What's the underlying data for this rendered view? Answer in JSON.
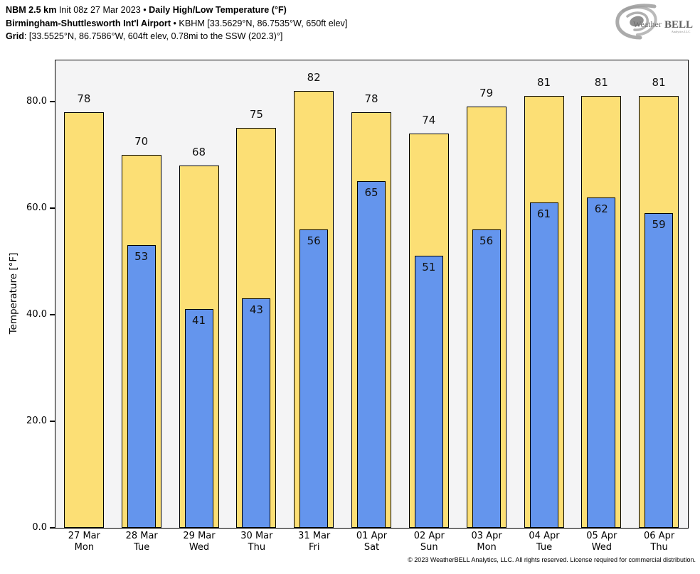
{
  "header": {
    "line1_model": "NBM 2.5 km",
    "line1_init": " Init 08z 27 Mar 2023 • ",
    "line1_product": "Daily High/Low Temperature (°F)",
    "line2_station": "Birmingham-Shuttlesworth Int'l Airport",
    "line2_info": " • KBHM [33.5629°N, 86.7535°W, 650ft elev]",
    "line3_label": "Grid",
    "line3_info": ": [33.5525°N, 86.7586°W, 604ft elev, 0.78mi to the SSW (202.3)°]"
  },
  "logo": {
    "name_part1": "Weather",
    "name_part2": "BELL",
    "subtitle": "Analytics LLC"
  },
  "chart_data": {
    "type": "bar",
    "title": "Daily High/Low Temperature (°F)",
    "xlabel": "",
    "ylabel": "Temperature [°F]",
    "ylim": [
      0,
      87.7
    ],
    "yticks": [
      0,
      20,
      40,
      60,
      80
    ],
    "ytick_labels": [
      "0.0",
      "20.0",
      "40.0",
      "60.0",
      "80.0"
    ],
    "grid": false,
    "legend": "none",
    "categories": [
      {
        "date": "27 Mar",
        "day": "Mon"
      },
      {
        "date": "28 Mar",
        "day": "Tue"
      },
      {
        "date": "29 Mar",
        "day": "Wed"
      },
      {
        "date": "30 Mar",
        "day": "Thu"
      },
      {
        "date": "31 Mar",
        "day": "Fri"
      },
      {
        "date": "01 Apr",
        "day": "Sat"
      },
      {
        "date": "02 Apr",
        "day": "Sun"
      },
      {
        "date": "03 Apr",
        "day": "Mon"
      },
      {
        "date": "04 Apr",
        "day": "Tue"
      },
      {
        "date": "05 Apr",
        "day": "Wed"
      },
      {
        "date": "06 Apr",
        "day": "Thu"
      }
    ],
    "series": [
      {
        "name": "High",
        "color": "#FCDF75",
        "values": [
          78,
          70,
          68,
          75,
          82,
          78,
          74,
          79,
          81,
          81,
          81
        ]
      },
      {
        "name": "Low",
        "color": "#6495ED",
        "values": [
          null,
          53,
          41,
          43,
          56,
          65,
          51,
          56,
          61,
          62,
          59
        ]
      }
    ]
  },
  "colors": {
    "high_bar": "#FCDF75",
    "low_bar": "#6495ED",
    "bar_outline": "#000000",
    "plot_bg": "#F4F4F5",
    "figure_bg": "#FFFFFF"
  },
  "footer": {
    "copyright": "© 2023 WeatherBELL Analytics, LLC. All rights reserved. License required for commercial distribution."
  }
}
